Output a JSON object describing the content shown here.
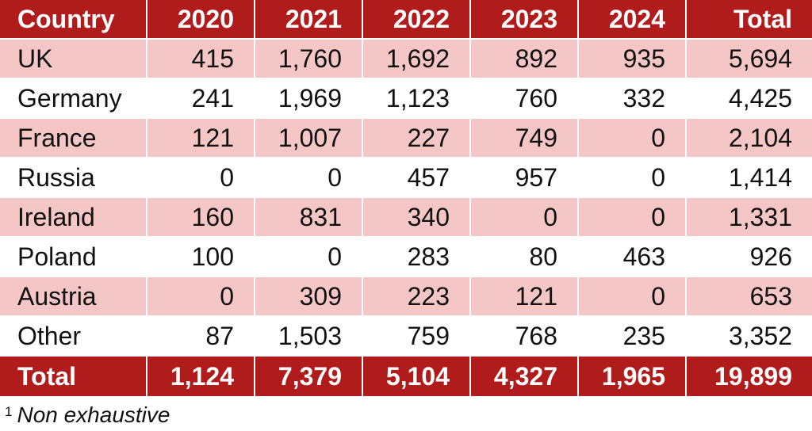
{
  "chart_data": {
    "type": "table",
    "columns": [
      "Country",
      "2020",
      "2021",
      "2022",
      "2023",
      "2024",
      "Total"
    ],
    "rows": [
      {
        "country": "UK",
        "values": [
          "415",
          "1,760",
          "1,692",
          "892",
          "935",
          "5,694"
        ]
      },
      {
        "country": "Germany",
        "values": [
          "241",
          "1,969",
          "1,123",
          "760",
          "332",
          "4,425"
        ]
      },
      {
        "country": "France",
        "values": [
          "121",
          "1,007",
          "227",
          "749",
          "0",
          "2,104"
        ]
      },
      {
        "country": "Russia",
        "values": [
          "0",
          "0",
          "457",
          "957",
          "0",
          "1,414"
        ]
      },
      {
        "country": "Ireland",
        "values": [
          "160",
          "831",
          "340",
          "0",
          "0",
          "1,331"
        ]
      },
      {
        "country": "Poland",
        "values": [
          "100",
          "0",
          "283",
          "80",
          "463",
          "926"
        ]
      },
      {
        "country": "Austria",
        "values": [
          "0",
          "309",
          "223",
          "121",
          "0",
          "653"
        ]
      },
      {
        "country": "Other",
        "values": [
          "87",
          "1,503",
          "759",
          "768",
          "235",
          "3,352"
        ]
      }
    ],
    "total_row": {
      "label": "Total",
      "values": [
        "1,124",
        "7,379",
        "5,104",
        "4,327",
        "1,965",
        "19,899"
      ]
    },
    "footnote": {
      "marker": "1",
      "text": "Non exhaustive"
    }
  },
  "colors": {
    "header_bg": "#b01c1c",
    "stripe_bg": "#f5c6c6",
    "plain_bg": "#ffffff",
    "header_text": "#ffffff"
  }
}
